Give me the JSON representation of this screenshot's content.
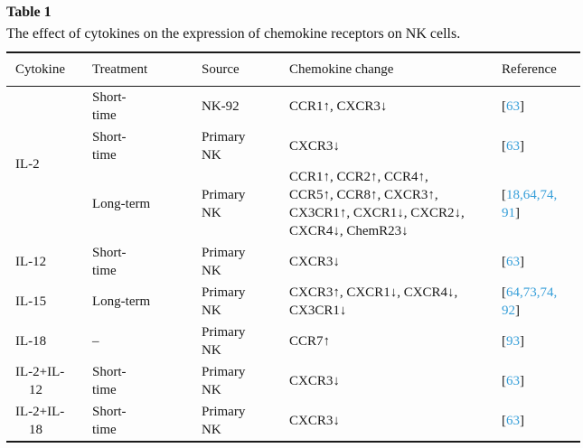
{
  "table": {
    "label": "Table 1",
    "caption": "The effect of cytokines on the expression of chemokine receptors on NK cells.",
    "columns": [
      "Cytokine",
      "Treatment",
      "Source",
      "Chemokine change",
      "Reference"
    ],
    "colors": {
      "link_blue": "#379fd9",
      "text": "#1a1a1a",
      "rule": "#1a1a1a",
      "background": "#fdfdfd"
    },
    "rows": [
      {
        "cytokine": "IL-2",
        "cytokine_rowspan": 3,
        "treatment": "Short-\ntime",
        "source": "NK-92",
        "chemokine": "CCR1↑, CXCR3↓",
        "ref_open": "[",
        "ref_links": "63",
        "ref_close": "]"
      },
      {
        "treatment": "Short-\ntime",
        "source": "Primary\nNK",
        "chemokine": "CXCR3↓",
        "ref_open": "[",
        "ref_links": "63",
        "ref_close": "]"
      },
      {
        "treatment": "Long-term",
        "source": "Primary\nNK",
        "chemokine": "CCR1↑, CCR2↑, CCR4↑,\nCCR5↑, CCR8↑, CXCR3↑,\nCX3CR1↑, CXCR1↓, CXCR2↓,\nCXCR4↓, ChemR23↓",
        "ref_open": "[",
        "ref_links": "18,64,74,\n91",
        "ref_close": "]"
      },
      {
        "cytokine": "IL-12",
        "treatment": "Short-\ntime",
        "source": "Primary\nNK",
        "chemokine": "CXCR3↓",
        "ref_open": "[",
        "ref_links": "63",
        "ref_close": "]"
      },
      {
        "cytokine": "IL-15",
        "treatment": "Long-term",
        "source": "Primary\nNK",
        "chemokine": "CXCR3↑, CXCR1↓, CXCR4↓,\nCX3CR1↓",
        "ref_open": "[",
        "ref_links": "64,73,74,\n92",
        "ref_close": "]"
      },
      {
        "cytokine": "IL-18",
        "treatment": "–",
        "source": "Primary\nNK",
        "chemokine": "CCR7↑",
        "ref_open": "[",
        "ref_links": "93",
        "ref_close": "]"
      },
      {
        "cytokine": "IL-2+IL-\n12",
        "treatment": "Short-\ntime",
        "source": "Primary\nNK",
        "chemokine": "CXCR3↓",
        "ref_open": "[",
        "ref_links": "63",
        "ref_close": "]"
      },
      {
        "cytokine": "IL-2+IL-\n18",
        "treatment": "Short-\ntime",
        "source": "Primary\nNK",
        "chemokine": "CXCR3↓",
        "ref_open": "[",
        "ref_links": "63",
        "ref_close": "]"
      }
    ]
  }
}
